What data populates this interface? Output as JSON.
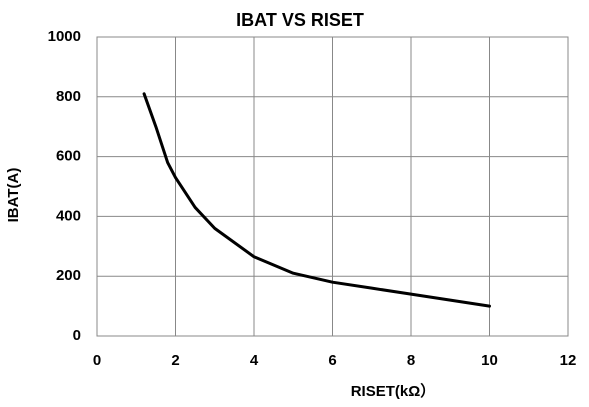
{
  "chart_data": {
    "type": "line",
    "title": "IBAT VS RISET",
    "x_label": "RISET(kΩ）",
    "y_label": "IBAT(A)",
    "x": [
      1.2,
      1.5,
      1.8,
      2.0,
      2.5,
      3,
      4,
      5,
      6,
      7,
      8,
      9,
      10
    ],
    "series": [
      {
        "name": "IBAT",
        "color": "#000000",
        "values": [
          810,
          700,
          580,
          530,
          430,
          360,
          265,
          210,
          180,
          160,
          140,
          120,
          100
        ]
      }
    ],
    "xlim": [
      0,
      12
    ],
    "xticks": [
      0,
      2,
      4,
      6,
      8,
      10,
      12
    ],
    "ylim": [
      0,
      1000
    ],
    "yticks": [
      0,
      200,
      400,
      600,
      800,
      1000
    ],
    "grid": true
  }
}
